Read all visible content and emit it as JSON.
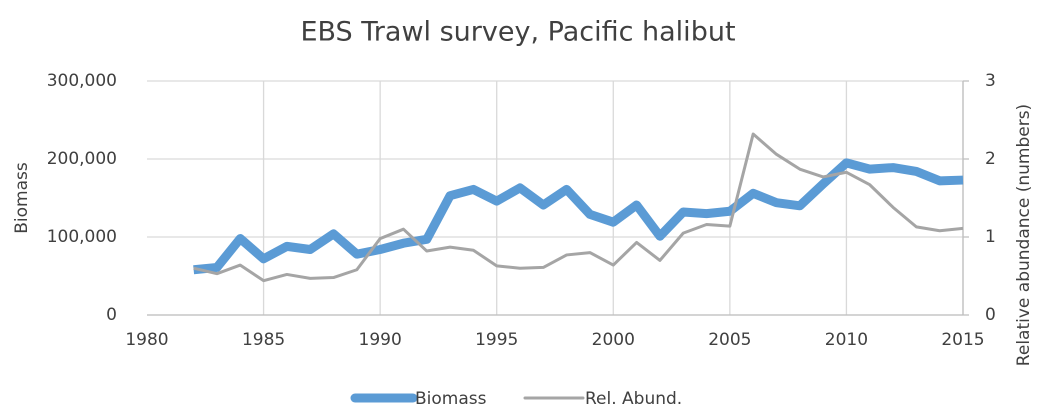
{
  "chart_data": {
    "type": "line",
    "title": "EBS Trawl survey, Pacific halibut",
    "ylabel": "Biomass",
    "y2label": "Relative abundance (numbers)",
    "x": [
      1982,
      1983,
      1984,
      1985,
      1986,
      1987,
      1988,
      1989,
      1990,
      1991,
      1992,
      1993,
      1994,
      1995,
      1996,
      1997,
      1998,
      1999,
      2000,
      2001,
      2002,
      2003,
      2004,
      2005,
      2006,
      2007,
      2008,
      2009,
      2010,
      2011,
      2012,
      2013,
      2014,
      2015
    ],
    "series": [
      {
        "name": "Biomass",
        "color": "#5b9bd5",
        "axis": "y",
        "values": [
          58000,
          61000,
          98000,
          72000,
          88000,
          84000,
          104000,
          78000,
          84000,
          92000,
          97000,
          153000,
          161000,
          146000,
          163000,
          141000,
          161000,
          129000,
          119000,
          141000,
          101000,
          132000,
          130000,
          133000,
          156000,
          144000,
          140000,
          168000,
          195000,
          187000,
          189000,
          184000,
          172000,
          173000
        ]
      },
      {
        "name": "Rel. Abund.",
        "color": "#a5a5a5",
        "axis": "y2",
        "values": [
          0.6,
          0.53,
          0.64,
          0.44,
          0.52,
          0.47,
          0.48,
          0.58,
          0.98,
          1.1,
          0.82,
          0.87,
          0.83,
          0.63,
          0.6,
          0.61,
          0.77,
          0.8,
          0.64,
          0.93,
          0.7,
          1.05,
          1.16,
          1.14,
          2.32,
          2.06,
          1.87,
          1.77,
          1.83,
          1.67,
          1.38,
          1.13,
          1.08,
          1.11
        ]
      }
    ],
    "xlim": [
      1980,
      2015
    ],
    "xticks": [
      1980,
      1985,
      1990,
      1995,
      2000,
      2005,
      2010,
      2015
    ],
    "ylim": [
      0,
      300000
    ],
    "yticks": [
      0,
      {
        "value": 100000,
        "label": "100,000"
      },
      {
        "value": 200000,
        "label": "200,000"
      },
      {
        "value": 300000,
        "label": "300,000"
      }
    ],
    "y2lim": [
      0,
      3
    ],
    "y2ticks": [
      0,
      1,
      2,
      3
    ],
    "grid": true,
    "legend": "bottom"
  }
}
